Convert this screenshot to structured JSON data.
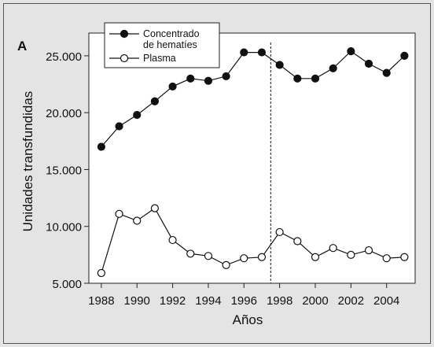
{
  "panel_letter": "A",
  "chart_data": {
    "type": "line",
    "xlabel": "Años",
    "ylabel": "Unidades transfundidas",
    "x": [
      1988,
      1989,
      1990,
      1991,
      1992,
      1993,
      1994,
      1995,
      1996,
      1997,
      1998,
      1999,
      2000,
      2001,
      2002,
      2003,
      2004,
      2005
    ],
    "xlim": [
      1987.3,
      2005.6
    ],
    "ylim": [
      5000,
      27000
    ],
    "x_ticks": [
      1988,
      1990,
      1992,
      1994,
      1996,
      1998,
      2000,
      2002,
      2004
    ],
    "x_tick_labels": [
      "1988",
      "1990",
      "1992",
      "1994",
      "1996",
      "1998",
      "2000",
      "2002",
      "2004"
    ],
    "y_ticks": [
      5000,
      10000,
      15000,
      20000,
      25000
    ],
    "y_tick_labels": [
      "5.000",
      "10.000",
      "15.000",
      "20.000",
      "25.000"
    ],
    "grid": false,
    "legend_position": "top-left",
    "vertical_line_x": 1997.5,
    "series": [
      {
        "name": "Concentrado de hematíes",
        "legend_lines": [
          "Concentrado",
          "de hematíes"
        ],
        "marker": "filled-circle",
        "color": "#111111",
        "values": [
          17000,
          18800,
          19800,
          21000,
          22300,
          23000,
          22800,
          23200,
          25300,
          25300,
          24200,
          23000,
          23000,
          23900,
          25400,
          24300,
          23500,
          25000
        ]
      },
      {
        "name": "Plasma",
        "legend_lines": [
          "Plasma"
        ],
        "marker": "open-circle",
        "color": "#111111",
        "values": [
          5900,
          11100,
          10500,
          11600,
          8800,
          7600,
          7400,
          6600,
          7200,
          7300,
          9500,
          8700,
          7300,
          8100,
          7500,
          7900,
          7200,
          7300
        ]
      }
    ]
  }
}
